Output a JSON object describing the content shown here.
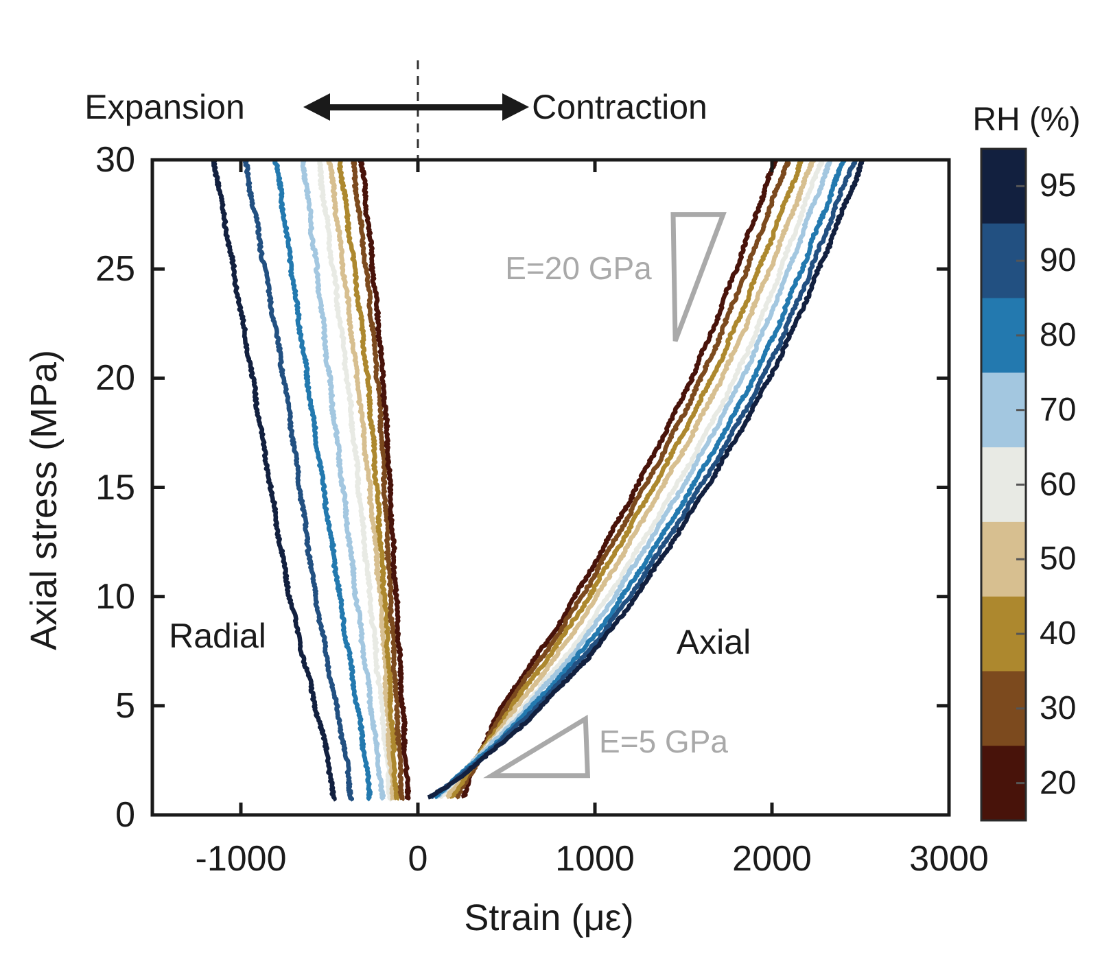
{
  "figure": {
    "header": {
      "expansion": "Expansion",
      "contraction": "Contraction"
    },
    "region_labels": {
      "radial": "Radial",
      "axial": "Axial"
    },
    "colors": {
      "text": "#1a1a1a",
      "axis": "#1a1a1a",
      "annotation_gray": "#a9a9a9"
    }
  },
  "chart_data": {
    "type": "line",
    "title": "",
    "xlabel": "Strain (με)",
    "ylabel": "Axial stress (MPa)",
    "xlim": [
      -1500,
      3000
    ],
    "ylim": [
      0,
      30
    ],
    "x_ticks": [
      -1000,
      0,
      1000,
      2000,
      3000
    ],
    "y_ticks": [
      0,
      5,
      10,
      15,
      20,
      25,
      30
    ],
    "grid": false,
    "zero_strain_guide": {
      "x": 0,
      "style": "dashed"
    },
    "colorbar": {
      "title": "RH (%)",
      "levels": [
        95,
        90,
        80,
        70,
        60,
        50,
        40,
        30,
        20
      ],
      "colors": [
        "#12203f",
        "#225081",
        "#2379af",
        "#a3c7e0",
        "#e8eae4",
        "#d7bf90",
        "#ad882e",
        "#7c4a1e",
        "#48130a"
      ]
    },
    "modulus_annotations": [
      {
        "label": "E=20 GPa",
        "E_GPa": 20,
        "triangle_points": [
          [
            1442,
            27.5
          ],
          [
            1724,
            27.5
          ],
          [
            1454,
            21.7
          ]
        ]
      },
      {
        "label": "E=5 GPa",
        "E_GPa": 5,
        "triangle_points": [
          [
            417,
            1.8
          ],
          [
            959,
            1.8
          ],
          [
            947,
            4.4
          ]
        ]
      }
    ],
    "series": [
      {
        "name": "Radial RH95",
        "family": "radial",
        "rh": 95,
        "points": [
          [
            0.7,
            -480
          ],
          [
            3,
            -520
          ],
          [
            10,
            -723
          ],
          [
            20,
            -935
          ],
          [
            30,
            -1151
          ]
        ]
      },
      {
        "name": "Radial RH90",
        "family": "radial",
        "rh": 90,
        "points": [
          [
            0.7,
            -376
          ],
          [
            3,
            -415
          ],
          [
            10,
            -576
          ],
          [
            20,
            -758
          ],
          [
            30,
            -977
          ]
        ]
      },
      {
        "name": "Radial RH80",
        "family": "radial",
        "rh": 80,
        "points": [
          [
            0.7,
            -271
          ],
          [
            3,
            -305
          ],
          [
            10,
            -441
          ],
          [
            20,
            -625
          ],
          [
            30,
            -802
          ]
        ]
      },
      {
        "name": "Radial RH70",
        "family": "radial",
        "rh": 70,
        "points": [
          [
            0.7,
            -202
          ],
          [
            3,
            -232
          ],
          [
            10,
            -348
          ],
          [
            20,
            -500
          ],
          [
            30,
            -647
          ]
        ]
      },
      {
        "name": "Radial RH60",
        "family": "radial",
        "rh": 60,
        "points": [
          [
            0.7,
            -155
          ],
          [
            3,
            -180
          ],
          [
            10,
            -271
          ],
          [
            20,
            -400
          ],
          [
            30,
            -562
          ]
        ]
      },
      {
        "name": "Radial RH50",
        "family": "radial",
        "rh": 50,
        "points": [
          [
            0.7,
            -140
          ],
          [
            3,
            -160
          ],
          [
            10,
            -213
          ],
          [
            20,
            -344
          ],
          [
            30,
            -500
          ]
        ]
      },
      {
        "name": "Radial RH40",
        "family": "radial",
        "rh": 40,
        "points": [
          [
            0.7,
            -120
          ],
          [
            3,
            -138
          ],
          [
            10,
            -189
          ],
          [
            20,
            -285
          ],
          [
            30,
            -442
          ]
        ]
      },
      {
        "name": "Radial RH30",
        "family": "radial",
        "rh": 30,
        "points": [
          [
            0.7,
            -88
          ],
          [
            3,
            -105
          ],
          [
            10,
            -155
          ],
          [
            20,
            -228
          ],
          [
            30,
            -368
          ]
        ]
      },
      {
        "name": "Radial RH20",
        "family": "radial",
        "rh": 20,
        "points": [
          [
            0.7,
            -56
          ],
          [
            3,
            -72
          ],
          [
            10,
            -124
          ],
          [
            20,
            -198
          ],
          [
            30,
            -318
          ]
        ]
      },
      {
        "name": "Axial RH20",
        "family": "axial",
        "rh": 20,
        "points": [
          [
            0.8,
            255
          ],
          [
            2,
            310
          ],
          [
            5,
            480
          ],
          [
            10,
            890
          ],
          [
            20,
            1545
          ],
          [
            30,
            2022
          ]
        ]
      },
      {
        "name": "Axial RH30",
        "family": "axial",
        "rh": 30,
        "points": [
          [
            0.8,
            222
          ],
          [
            2,
            305
          ],
          [
            5,
            505
          ],
          [
            10,
            925
          ],
          [
            20,
            1600
          ],
          [
            30,
            2091
          ]
        ]
      },
      {
        "name": "Axial RH40",
        "family": "axial",
        "rh": 40,
        "points": [
          [
            0.8,
            190
          ],
          [
            2,
            288
          ],
          [
            5,
            535
          ],
          [
            10,
            965
          ],
          [
            20,
            1660
          ],
          [
            30,
            2169
          ]
        ]
      },
      {
        "name": "Axial RH50",
        "family": "axial",
        "rh": 50,
        "points": [
          [
            0.8,
            160
          ],
          [
            2,
            272
          ],
          [
            5,
            565
          ],
          [
            10,
            1010
          ],
          [
            20,
            1715
          ],
          [
            30,
            2234
          ]
        ]
      },
      {
        "name": "Axial RH60",
        "family": "axial",
        "rh": 60,
        "points": [
          [
            0.8,
            130
          ],
          [
            2,
            262
          ],
          [
            5,
            600
          ],
          [
            10,
            1075
          ],
          [
            20,
            1790
          ],
          [
            30,
            2280
          ]
        ]
      },
      {
        "name": "Axial RH70",
        "family": "axial",
        "rh": 70,
        "points": [
          [
            0.8,
            105
          ],
          [
            2,
            258
          ],
          [
            5,
            620
          ],
          [
            10,
            1110
          ],
          [
            20,
            1830
          ],
          [
            30,
            2331
          ]
        ]
      },
      {
        "name": "Axial RH80",
        "family": "axial",
        "rh": 80,
        "points": [
          [
            0.8,
            90
          ],
          [
            2,
            262
          ],
          [
            5,
            650
          ],
          [
            10,
            1155
          ],
          [
            20,
            1895
          ],
          [
            30,
            2408
          ]
        ]
      },
      {
        "name": "Axial RH90",
        "family": "axial",
        "rh": 90,
        "points": [
          [
            0.8,
            75
          ],
          [
            2,
            270
          ],
          [
            5,
            675
          ],
          [
            10,
            1195
          ],
          [
            20,
            1945
          ],
          [
            30,
            2466
          ]
        ]
      },
      {
        "name": "Axial RH95",
        "family": "axial",
        "rh": 95,
        "points": [
          [
            0.8,
            60
          ],
          [
            2,
            280
          ],
          [
            5,
            700
          ],
          [
            10,
            1230
          ],
          [
            20,
            1985
          ],
          [
            30,
            2517
          ]
        ]
      }
    ]
  }
}
